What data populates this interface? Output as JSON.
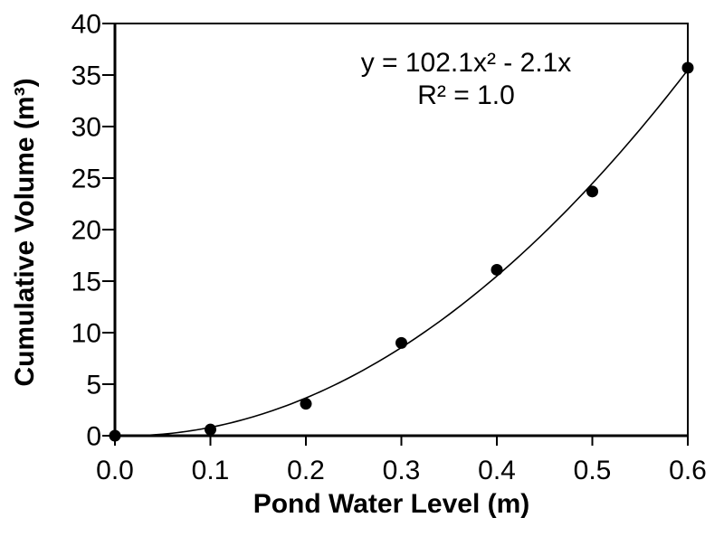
{
  "figure": {
    "background_color": "#ffffff"
  },
  "chart_data": {
    "type": "scatter",
    "title": "",
    "xlabel": "Pond Water Level (m)",
    "ylabel": "Cumulative Volume (m³)",
    "xlim": [
      0.0,
      0.6
    ],
    "ylim": [
      0,
      40
    ],
    "x_ticks": [
      "0.0",
      "0.1",
      "0.2",
      "0.3",
      "0.4",
      "0.5",
      "0.6"
    ],
    "y_ticks": [
      "0",
      "5",
      "10",
      "15",
      "20",
      "25",
      "30",
      "35",
      "40"
    ],
    "x": [
      0.0,
      0.1,
      0.2,
      0.3,
      0.4,
      0.5,
      0.6
    ],
    "y": [
      0.0,
      0.6,
      3.1,
      9.0,
      16.1,
      23.7,
      35.7
    ],
    "trendline": {
      "form": "quadratic",
      "a": 102.1,
      "b": -2.1,
      "equation": "y = 102.1x² - 2.1x",
      "r_squared": "R² = 1.0"
    },
    "grid": false,
    "legend": "none",
    "marker_color": "#000000",
    "line_color": "#000000",
    "axis_color": "#000000"
  }
}
